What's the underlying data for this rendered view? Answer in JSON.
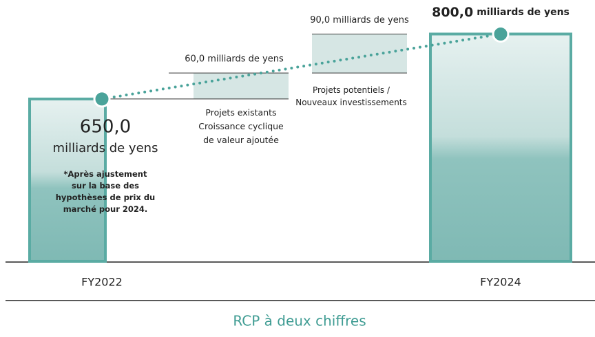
{
  "chart_data": {
    "type": "waterfall",
    "categories": [
      "FY2022",
      "Projets existants\nCroissance cyclique\nde valeur ajoutée",
      "Projets potentiels /\nNouveaux investissements",
      "FY2024"
    ],
    "values": [
      650.0,
      60.0,
      90.0,
      800.0
    ],
    "value_labels": [
      "650,0",
      "60,0 milliards de yens",
      "90,0 milliards de yens",
      "800,0"
    ],
    "unit": "milliards de yens",
    "ylim": [
      275,
      850
    ],
    "colors": {
      "bar": "#84bdb8",
      "step": "#d6e6e4",
      "line": "#4aa39a"
    },
    "annotation": "*Après ajustement\nsur la base des\nhypothèses de prix du\nmarché pour 2024.",
    "footer": "RCP à deux chiffres"
  }
}
